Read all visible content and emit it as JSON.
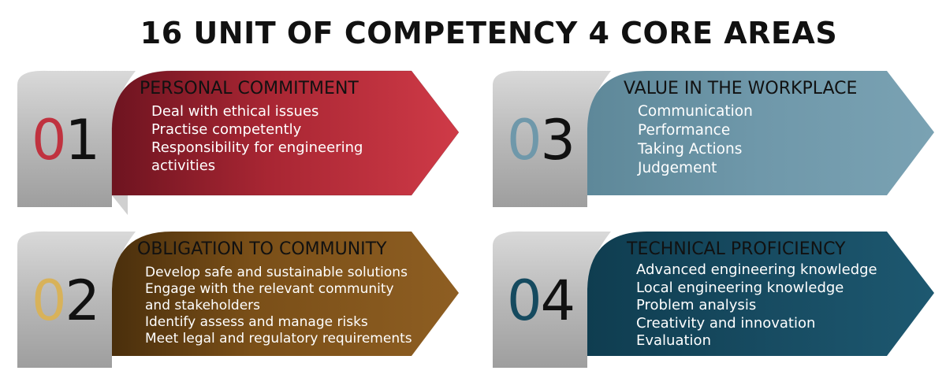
{
  "title": "16 UNIT OF COMPETENCY  4 CORE AREAS",
  "colors": {
    "tab_gray": "#bcbcbc",
    "area1": "#c53341",
    "area2": "#8a5a1c",
    "area3": "#6e96a8",
    "area4": "#1a4f66"
  },
  "areas": [
    {
      "number_first": "0",
      "number_second": "1",
      "digit_color": "#c0323f",
      "heading": "PERSONAL COMMITMENT",
      "items": [
        "Deal with ethical issues",
        "Practise competently",
        "Responsibility for engineering",
        "activities"
      ]
    },
    {
      "number_first": "0",
      "number_second": "2",
      "digit_color": "#d8b25a",
      "heading": "OBLIGATION TO COMMUNITY",
      "items": [
        "Develop safe and sustainable solutions",
        "Engage with the relevant community",
        "and stakeholders",
        "Identify assess and manage risks",
        "Meet legal and regulatory requirements"
      ]
    },
    {
      "number_first": "0",
      "number_second": "3",
      "digit_color": "#6f98aa",
      "heading": "VALUE IN THE WORKPLACE",
      "items": [
        "Communication",
        "Performance",
        "Taking Actions",
        "Judgement"
      ]
    },
    {
      "number_first": "0",
      "number_second": "4",
      "digit_color": "#154a5f",
      "heading": "TECHNICAL PROFICIENCY",
      "items": [
        "Advanced engineering knowledge",
        "Local engineering knowledge",
        "Problem analysis",
        "Creativity and innovation",
        "Evaluation"
      ]
    }
  ]
}
